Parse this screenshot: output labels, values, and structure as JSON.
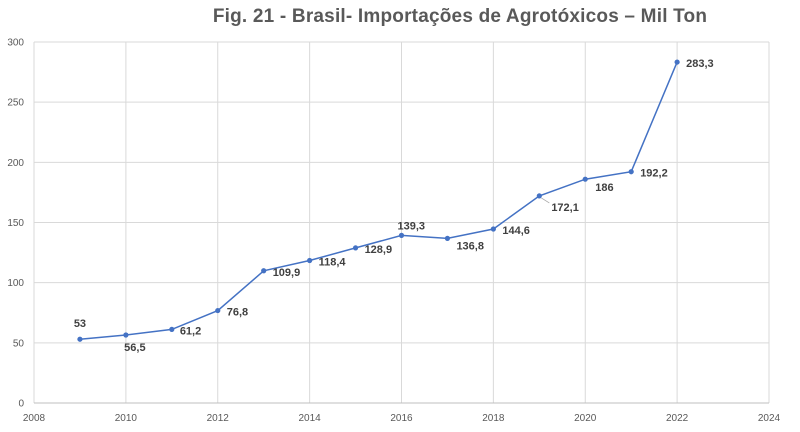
{
  "chart_data": {
    "type": "line",
    "title": "Fig. 21 - Brasil- Importações de Agrotóxicos – Mil Ton",
    "xlabel": "",
    "ylabel": "",
    "xlim": [
      2008,
      2024
    ],
    "ylim": [
      0,
      300
    ],
    "x_ticks": [
      2008,
      2010,
      2012,
      2014,
      2016,
      2018,
      2020,
      2022,
      2024
    ],
    "y_ticks": [
      0,
      50,
      100,
      150,
      200,
      250,
      300
    ],
    "grid": true,
    "legend": "none",
    "series": [
      {
        "color": "#4472c4",
        "points": [
          {
            "x": 2009,
            "y": 53,
            "label": "53"
          },
          {
            "x": 2010,
            "y": 56.5,
            "label": "56,5"
          },
          {
            "x": 2011,
            "y": 61.2,
            "label": "61,2"
          },
          {
            "x": 2012,
            "y": 76.8,
            "label": "76,8"
          },
          {
            "x": 2013,
            "y": 109.9,
            "label": "109,9"
          },
          {
            "x": 2014,
            "y": 118.4,
            "label": "118,4"
          },
          {
            "x": 2015,
            "y": 128.9,
            "label": "128,9"
          },
          {
            "x": 2016,
            "y": 139.3,
            "label": "139,3"
          },
          {
            "x": 2017,
            "y": 136.8,
            "label": "136,8"
          },
          {
            "x": 2018,
            "y": 144.6,
            "label": "144,6"
          },
          {
            "x": 2019,
            "y": 172.1,
            "label": "172,1"
          },
          {
            "x": 2020,
            "y": 186,
            "label": "186"
          },
          {
            "x": 2021,
            "y": 192.2,
            "label": "192,2"
          },
          {
            "x": 2022,
            "y": 283.3,
            "label": "283,3"
          }
        ]
      }
    ]
  }
}
